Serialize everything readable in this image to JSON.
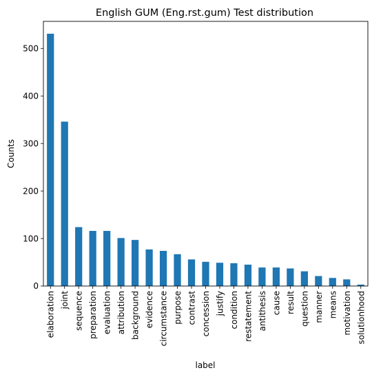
{
  "chart_data": {
    "type": "bar",
    "title": "English GUM (Eng.rst.gum) Test distribution",
    "xlabel": "label",
    "ylabel": "Counts",
    "categories": [
      "elaboration",
      "joint",
      "sequence",
      "preparation",
      "evaluation",
      "attribution",
      "background",
      "evidence",
      "circumstance",
      "purpose",
      "contrast",
      "concession",
      "justify",
      "condition",
      "restatement",
      "antithesis",
      "cause",
      "result",
      "question",
      "manner",
      "means",
      "motivation",
      "solutionhood"
    ],
    "values": [
      531,
      346,
      124,
      116,
      116,
      101,
      97,
      77,
      74,
      67,
      56,
      51,
      49,
      48,
      45,
      39,
      39,
      37,
      31,
      21,
      17,
      14,
      3
    ],
    "ylim": [
      0,
      557
    ],
    "yticks": [
      0,
      100,
      200,
      300,
      400,
      500
    ],
    "grid": false,
    "bar_color": "#1f77b4"
  }
}
